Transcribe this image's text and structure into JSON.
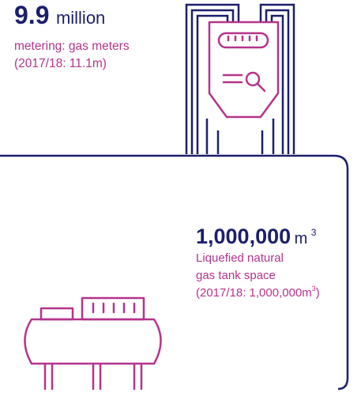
{
  "meters": {
    "value": "9.9",
    "unit": "million",
    "label": "metering: gas meters",
    "comparison": "(2017/18: 11.1m)"
  },
  "lng": {
    "value": "1,000,000",
    "unit": "m",
    "unit_sup": "3",
    "label_lines": [
      "Liquefied natural",
      "gas tank space"
    ],
    "comparison": "(2017/18: 1,000,000m",
    "comparison_sup": "3",
    "comparison_end": ")"
  }
}
